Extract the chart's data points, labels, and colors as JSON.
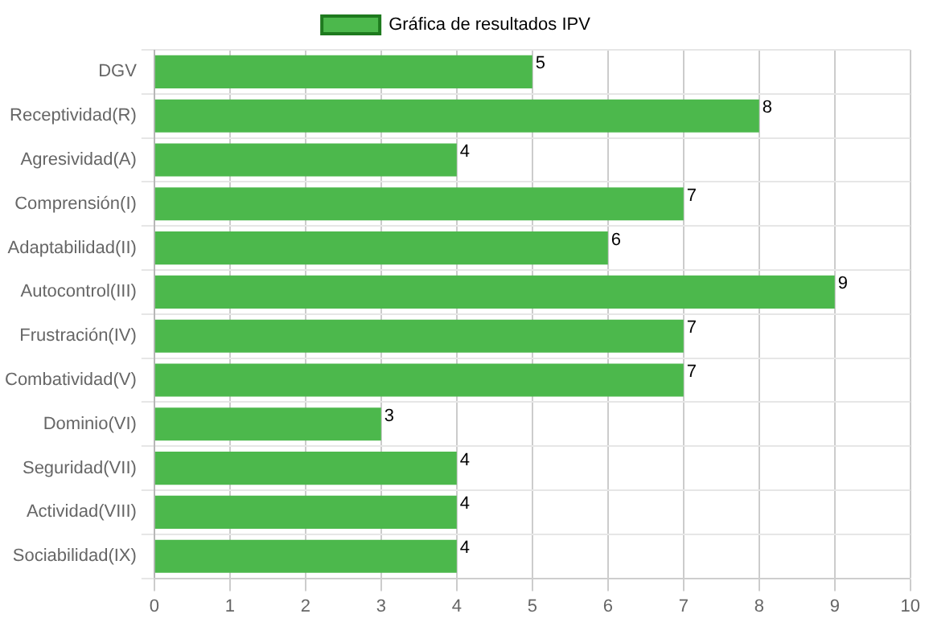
{
  "chart_data": {
    "type": "bar",
    "orientation": "horizontal",
    "categories": [
      "DGV",
      "Receptividad(R)",
      "Agresividad(A)",
      "Comprensión(I)",
      "Adaptabilidad(II)",
      "Autocontrol(III)",
      "Frustración(IV)",
      "Combatividad(V)",
      "Dominio(VI)",
      "Seguridad(VII)",
      "Actividad(VIII)",
      "Sociabilidad(IX)"
    ],
    "series": [
      {
        "name": "Gráfica de resultados IPV",
        "color": "#4cb84c",
        "values": [
          5,
          8,
          4,
          7,
          6,
          9,
          7,
          7,
          3,
          4,
          4,
          4
        ]
      }
    ],
    "xlim": [
      0,
      10
    ],
    "xticks": [
      0,
      1,
      2,
      3,
      4,
      5,
      6,
      7,
      8,
      9,
      10
    ],
    "grid": true,
    "legend": "top",
    "data_labels": true
  }
}
